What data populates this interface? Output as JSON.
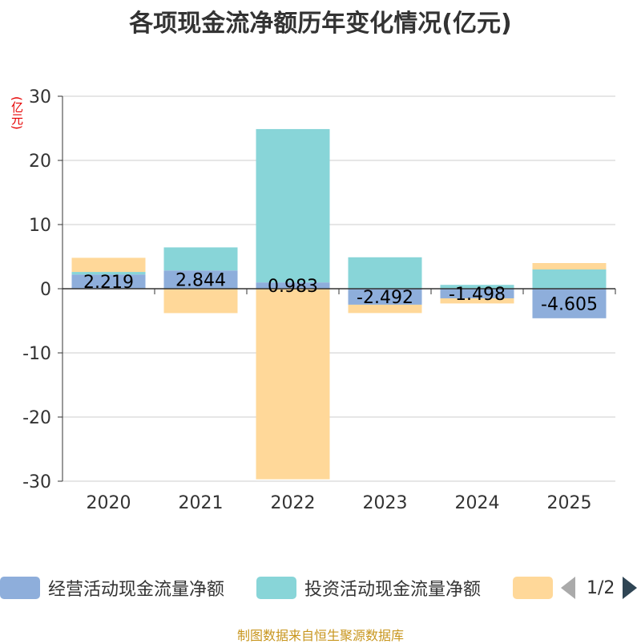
{
  "title": "各项现金流净额历年变化情况(亿元)",
  "unit_label": "(亿元)",
  "source": "制图数据来自恒生聚源数据库",
  "pager": {
    "text": "1/2"
  },
  "chart_data": {
    "type": "bar",
    "stacked": true,
    "categories": [
      "2020",
      "2021",
      "2022",
      "2023",
      "2024",
      "2025"
    ],
    "ylim": [
      -30,
      30
    ],
    "yticks": [
      -30,
      -20,
      -10,
      0,
      10,
      20,
      30
    ],
    "series": [
      {
        "name": "经营活动现金流量净额",
        "color": "#8eaedb",
        "values": [
          2.219,
          2.844,
          0.983,
          -2.492,
          -1.498,
          -4.605
        ]
      },
      {
        "name": "投资活动现金流量净额",
        "color": "#88d5d8",
        "values": [
          0.4,
          3.6,
          23.9,
          4.9,
          0.6,
          3.0
        ]
      },
      {
        "name": "",
        "color": "#ffd899",
        "values": [
          2.2,
          -3.8,
          -29.7,
          -1.3,
          -0.8,
          1.0
        ]
      }
    ],
    "data_labels": [
      "2.219",
      "2.844",
      "0.983",
      "-2.492",
      "-1.498",
      "-4.605"
    ]
  }
}
